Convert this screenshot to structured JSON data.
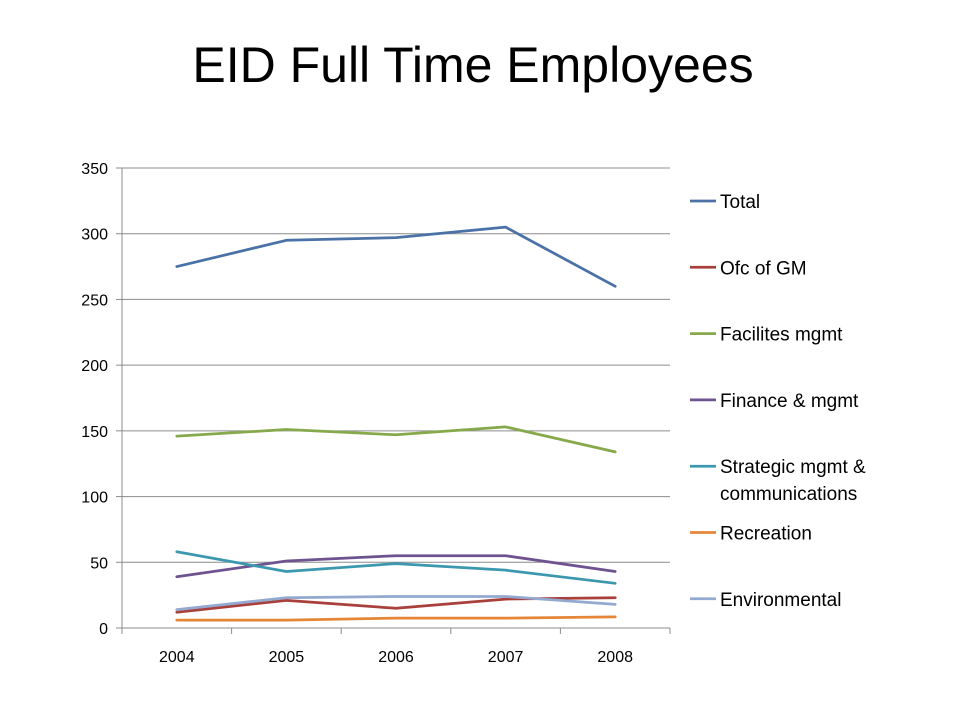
{
  "slide": {
    "title": "EID Full Time Employees"
  },
  "chart_data": {
    "type": "line",
    "title": "EID Full Time Employees",
    "xlabel": "",
    "ylabel": "",
    "categories": [
      "2004",
      "2005",
      "2006",
      "2007",
      "2008"
    ],
    "ylim": [
      0,
      350
    ],
    "yticks": [
      0,
      50,
      100,
      150,
      200,
      250,
      300,
      350
    ],
    "grid": true,
    "legend_position": "right",
    "series": [
      {
        "name": "Total",
        "color": "#4A72A6",
        "values": [
          275,
          295,
          297,
          305,
          260
        ]
      },
      {
        "name": "Ofc of GM",
        "color": "#A8403C",
        "values": [
          12,
          21,
          15,
          22,
          23
        ]
      },
      {
        "name": "Facilites mgmt",
        "color": "#86A94C",
        "values": [
          146,
          151,
          147,
          153,
          134
        ]
      },
      {
        "name": "Finance & mgmt",
        "color": "#6E5390",
        "values": [
          39,
          51,
          55,
          55,
          43
        ]
      },
      {
        "name": "Strategic mgmt & communications",
        "legend_lines": [
          "Strategic mgmt &",
          "communications"
        ],
        "color": "#3C98AE",
        "values": [
          58,
          43,
          49,
          44,
          34
        ]
      },
      {
        "name": "Recreation",
        "color": "#E58638",
        "values": [
          6,
          6,
          7.5,
          7.5,
          8.5
        ]
      },
      {
        "name": "Environmental",
        "color": "#93A9CF",
        "values": [
          14,
          23,
          24,
          24,
          18
        ]
      }
    ]
  }
}
